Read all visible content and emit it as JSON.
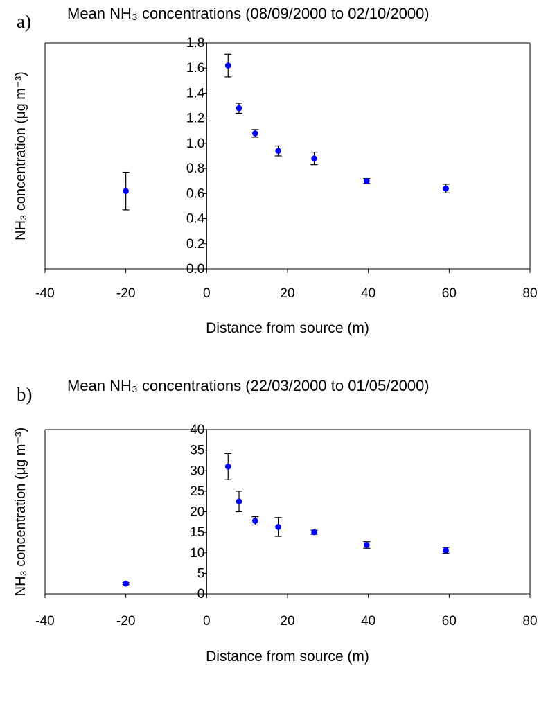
{
  "chart_data": [
    {
      "type": "scatter",
      "panel_label": "a)",
      "title": "Mean NH₃ concentrations (08/09/2000 to 02/10/2000)",
      "xlabel": "Distance from source (m)",
      "ylabel": "NH₃ concentration (μg m⁻³)",
      "xlim": [
        -40,
        80
      ],
      "ylim": [
        0,
        1.8
      ],
      "x_ticks": [
        "-40",
        "-20",
        "0",
        "20",
        "40",
        "60",
        "80"
      ],
      "y_ticks": [
        "0.0",
        "0.2",
        "0.4",
        "0.6",
        "0.8",
        "1.0",
        "1.2",
        "1.4",
        "1.6",
        "1.8"
      ],
      "marker_color": "#0000ff",
      "series": [
        {
          "x": [
            -20,
            5.3,
            8,
            12,
            17.7,
            26.6,
            39.6,
            59.2
          ],
          "y": [
            0.62,
            1.62,
            1.28,
            1.08,
            0.94,
            0.88,
            0.7,
            0.64
          ],
          "error": [
            0.15,
            0.09,
            0.04,
            0.03,
            0.04,
            0.05,
            0.02,
            0.035
          ]
        }
      ]
    },
    {
      "type": "scatter",
      "panel_label": "b)",
      "title": "Mean NH₃ concentrations (22/03/2000 to 01/05/2000)",
      "xlabel": "Distance from source (m)",
      "ylabel": "NH₃ concentration (μg m⁻³)",
      "xlim": [
        -40,
        80
      ],
      "ylim": [
        0,
        40
      ],
      "x_ticks": [
        "-40",
        "-20",
        "0",
        "20",
        "40",
        "60",
        "80"
      ],
      "y_ticks": [
        "0",
        "5",
        "10",
        "15",
        "20",
        "25",
        "30",
        "35",
        "40"
      ],
      "marker_color": "#0000ff",
      "series": [
        {
          "x": [
            -20,
            5.3,
            8,
            12,
            17.7,
            26.6,
            39.6,
            59.2
          ],
          "y": [
            2.5,
            31.0,
            22.5,
            17.8,
            16.3,
            15.0,
            11.9,
            10.6
          ],
          "error": [
            0.25,
            3.2,
            2.5,
            1.0,
            2.3,
            0.5,
            0.8,
            0.7
          ]
        }
      ]
    }
  ]
}
